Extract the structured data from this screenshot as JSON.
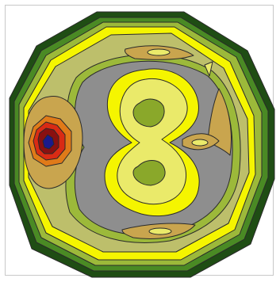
{
  "chart_data": {
    "type": "heatmap",
    "title": "",
    "xlabel": "",
    "ylabel": "",
    "grid": false,
    "legend": "none",
    "colors": {
      "background": "#ffffff",
      "frame": "#c8c8c8",
      "outline": "#2a2a2a",
      "level_darkgreen": "#1f4d14",
      "level_green": "#4a8a24",
      "level_olive": "#9cb93a",
      "level_yellow": "#f5f500",
      "level_paleyellow": "#eaea6a",
      "level_olivegrey": "#bdbf6b",
      "level_grey": "#8e8e8e",
      "level_tan": "#c9a54e",
      "level_orange": "#e07a18",
      "level_red": "#d92b14",
      "level_darkred": "#8a1010",
      "level_navy": "#1a1a8c"
    }
  }
}
